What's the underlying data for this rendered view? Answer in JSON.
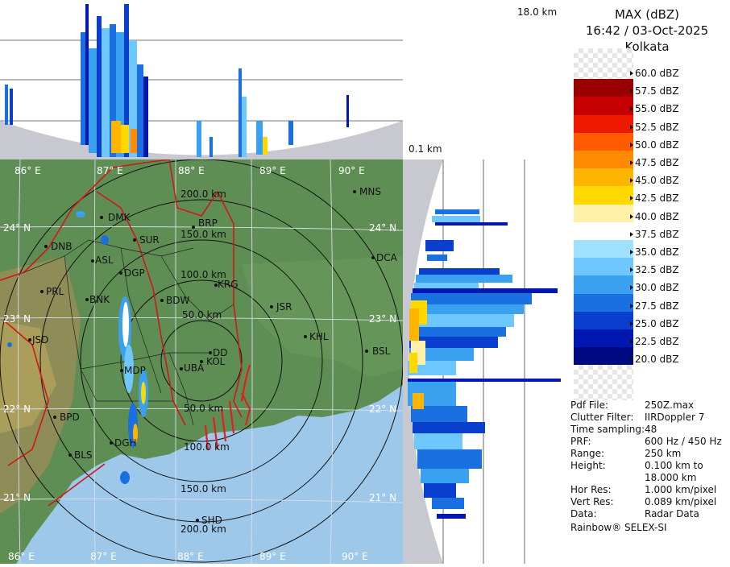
{
  "header": {
    "product": "MAX (dBZ)",
    "datetime": "16:42 / 03-Oct-2025",
    "site": "Kolkata"
  },
  "top_panel": {
    "height_max": "18.0 km",
    "height_min": "0.1 km"
  },
  "legend": [
    {
      "label": "60.0 dBZ",
      "color": "checker"
    },
    {
      "label": "57.5 dBZ",
      "color": "#9b0000"
    },
    {
      "label": "55.0 dBZ",
      "color": "#c40000"
    },
    {
      "label": "52.5 dBZ",
      "color": "#ee1a00"
    },
    {
      "label": "50.0 dBZ",
      "color": "#ff5a00"
    },
    {
      "label": "47.5 dBZ",
      "color": "#ff8a00"
    },
    {
      "label": "45.0 dBZ",
      "color": "#ffb400"
    },
    {
      "label": "42.5 dBZ",
      "color": "#ffd800"
    },
    {
      "label": "40.0 dBZ",
      "color": "#fff0a8"
    },
    {
      "label": "37.5 dBZ",
      "color": "#ffffff"
    },
    {
      "label": "35.0 dBZ",
      "color": "#9fe0ff"
    },
    {
      "label": "32.5 dBZ",
      "color": "#6ec8ff"
    },
    {
      "label": "30.0 dBZ",
      "color": "#3aa0f0"
    },
    {
      "label": "27.5 dBZ",
      "color": "#1a70e0"
    },
    {
      "label": "25.0 dBZ",
      "color": "#0a3ecc"
    },
    {
      "label": "22.5 dBZ",
      "color": "#0018b0"
    },
    {
      "label": "20.0 dBZ",
      "color": "#000a80"
    }
  ],
  "info": [
    {
      "key": "Pdf File:",
      "value": "250Z.max"
    },
    {
      "key": "Clutter Filter:",
      "value": "IIRDoppler 7"
    },
    {
      "key": "Time sampling:",
      "value": "48"
    },
    {
      "key": "PRF:",
      "value": "600 Hz / 450 Hz"
    },
    {
      "key": "Range:",
      "value": "250 km"
    },
    {
      "key": "Height:",
      "value": "0.100 km to"
    },
    {
      "key": "",
      "value": "18.000 km"
    },
    {
      "key": "Hor Res:",
      "value": "1.000 km/pixel"
    },
    {
      "key": "Vert Res:",
      "value": "0.089 km/pixel"
    },
    {
      "key": "Data:",
      "value": "Radar Data"
    }
  ],
  "footer": "Rainbow® SELEX-SI",
  "map": {
    "lon_labels": [
      "86° E",
      "87° E",
      "88° E",
      "89° E",
      "90° E"
    ],
    "lat_labels": [
      "24° N",
      "23° N",
      "22° N",
      "21° N"
    ],
    "range_rings": [
      "50.0 km",
      "100.0 km",
      "150.0 km",
      "200.0 km"
    ],
    "range_rings_south": [
      "50.0 km",
      "100.0 km",
      "150.0 km",
      "200.0 km"
    ],
    "stations": [
      "MNS",
      "DMK",
      "BRP",
      "DNB",
      "SUR",
      "DCA",
      "ASL",
      "DGP",
      "KRG",
      "PRL",
      "BNK",
      "BDW",
      "JSR",
      "KHL",
      "JSD",
      "MDP",
      "DD",
      "BSL",
      "KOL",
      "UBA",
      "BPD",
      "DGH",
      "BLS",
      "SHD"
    ]
  }
}
